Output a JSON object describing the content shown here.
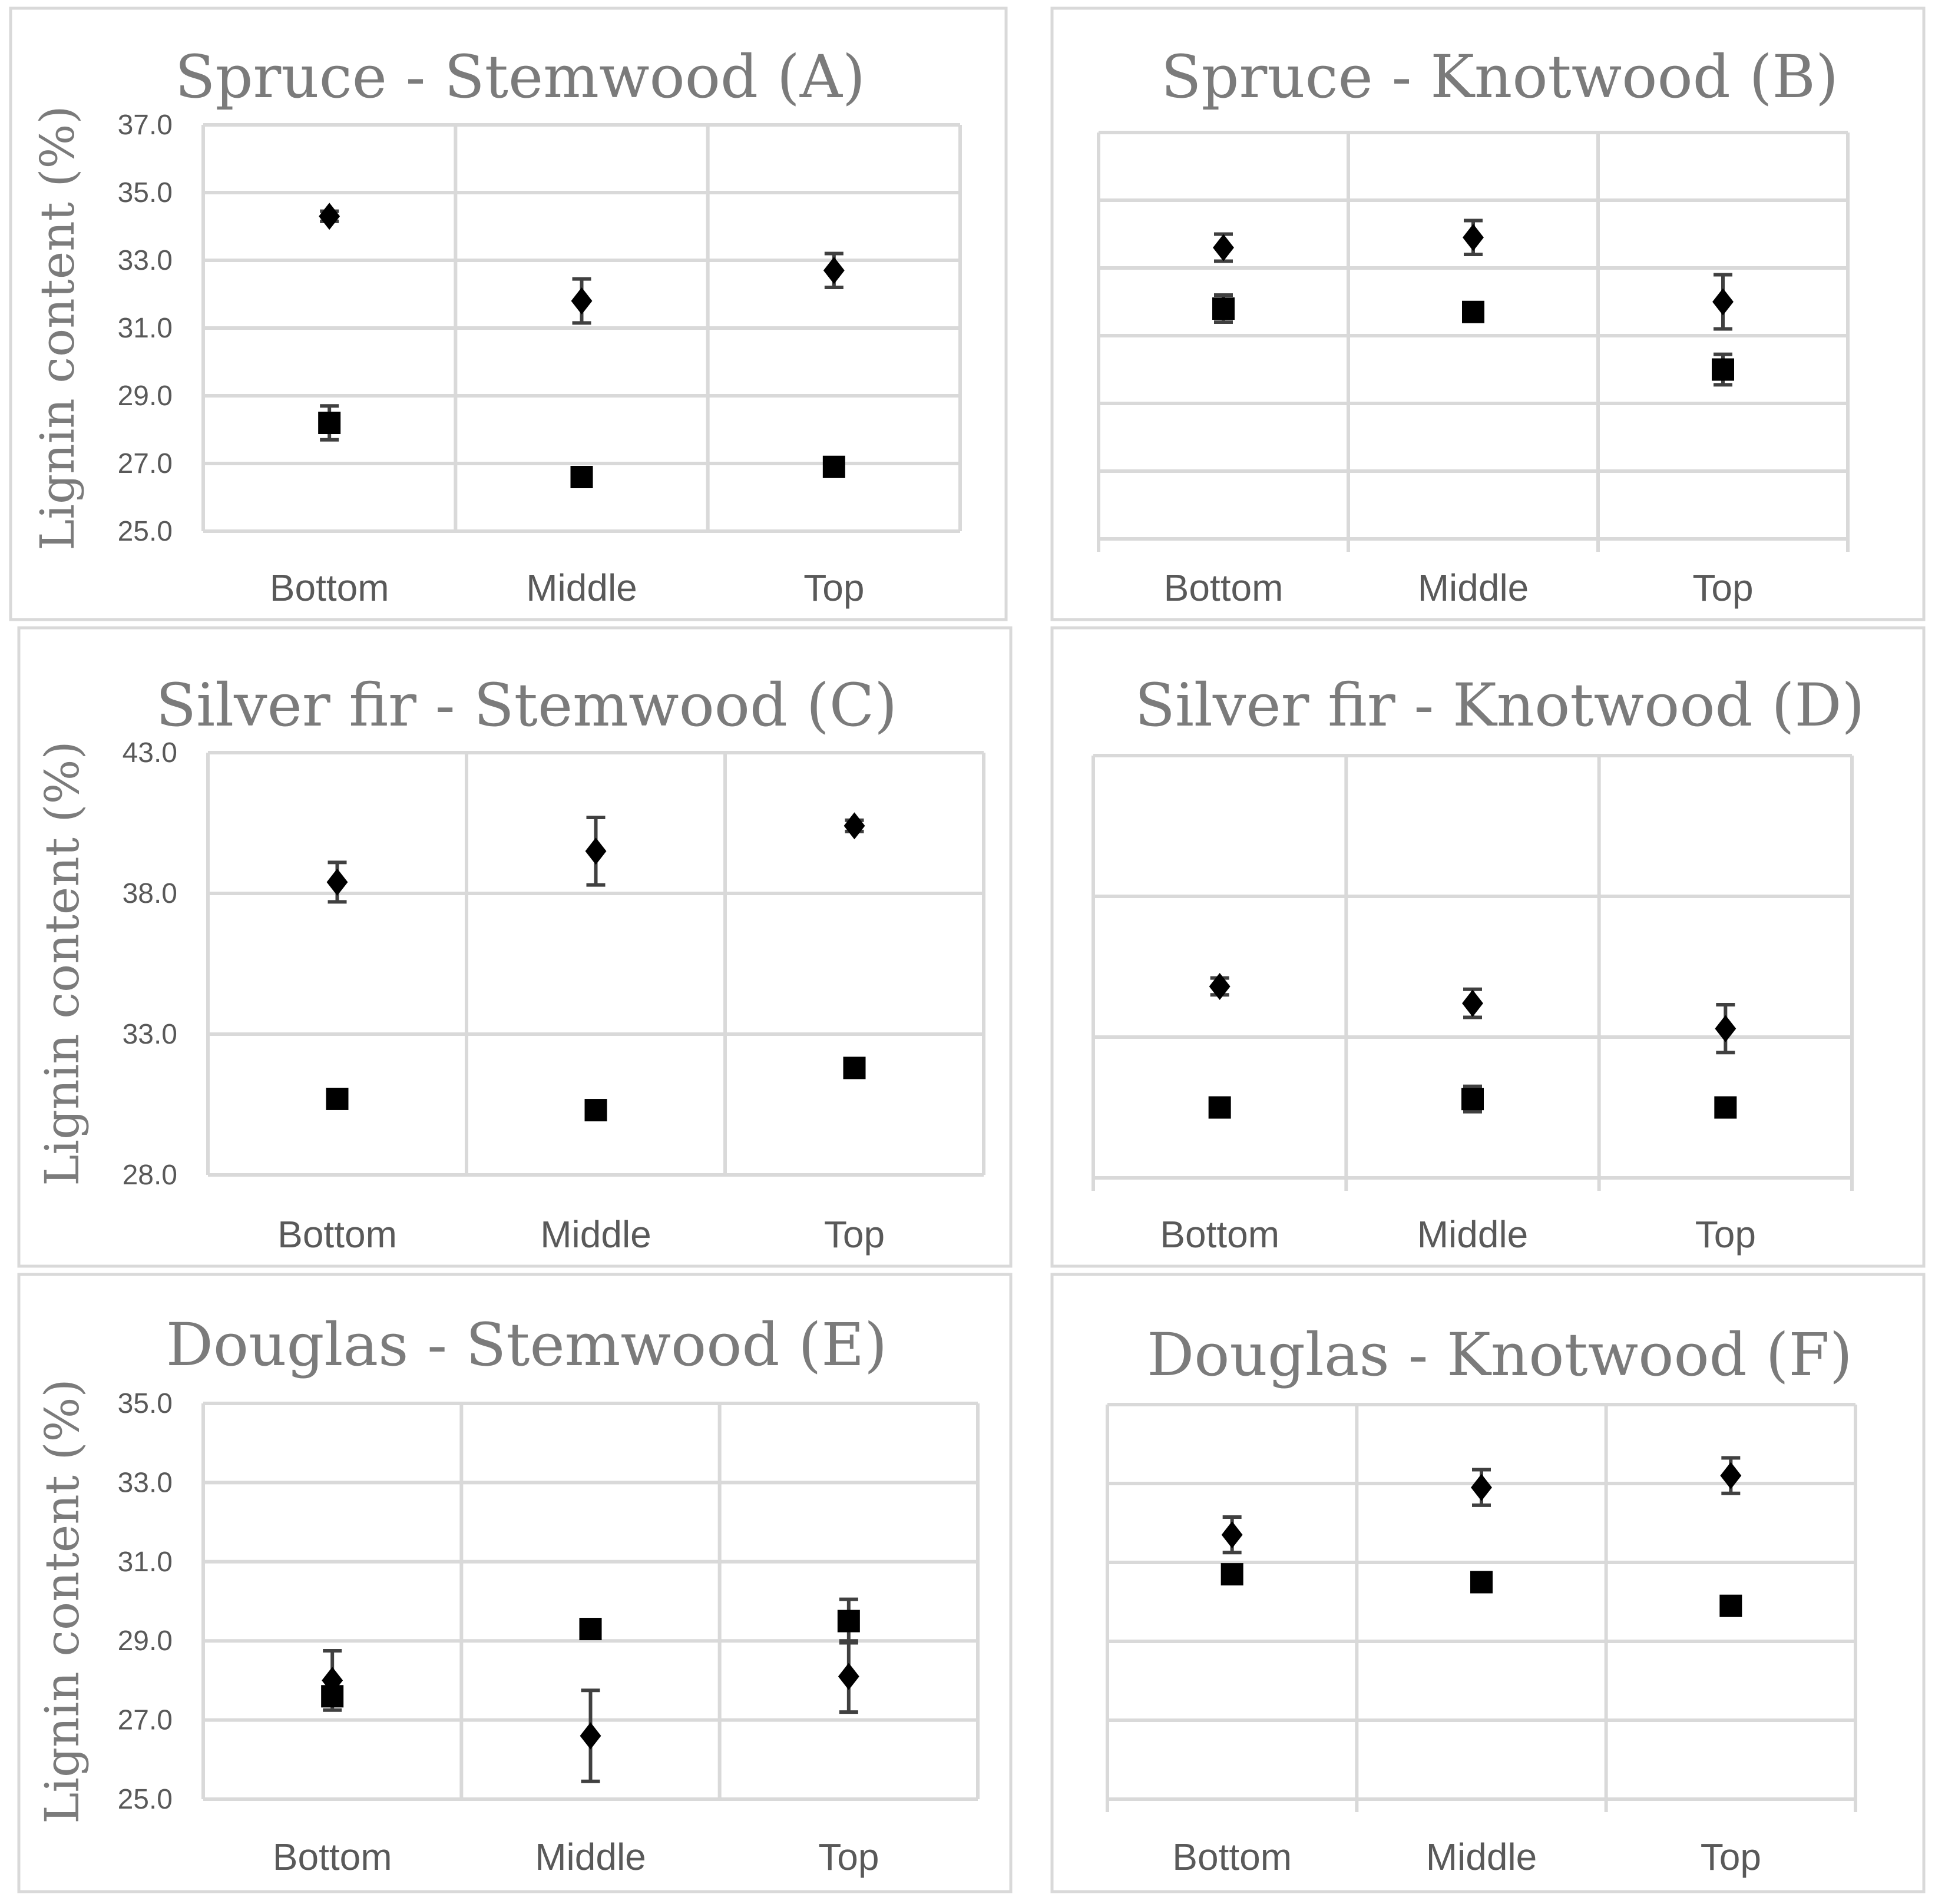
{
  "chart_data": [
    {
      "id": "A",
      "type": "scatter",
      "title": "Spruce - Stemwood (A)",
      "ylabel": "Lignin content (%)",
      "show_yticks": true,
      "ylim": [
        25,
        37
      ],
      "yticks": [
        25,
        27,
        29,
        31,
        33,
        35,
        37
      ],
      "ytick_labels": [
        "25.0",
        "27.0",
        "29.0",
        "31.0",
        "33.0",
        "35.0",
        "37.0"
      ],
      "categories": [
        "Bottom",
        "Middle",
        "Top"
      ],
      "series": [
        {
          "name": "diamond",
          "marker": "diamond",
          "values": [
            34.3,
            31.8,
            32.7
          ],
          "errors": [
            0.15,
            0.65,
            0.5
          ]
        },
        {
          "name": "square",
          "marker": "square",
          "values": [
            28.2,
            26.6,
            26.9
          ],
          "errors": [
            0.5,
            0.1,
            0.1
          ]
        }
      ]
    },
    {
      "id": "B",
      "type": "scatter",
      "title": "Spruce - Knotwood (B)",
      "ylabel": "",
      "show_yticks": false,
      "ylim": [
        25,
        37
      ],
      "yticks": [
        25,
        27,
        29,
        31,
        33,
        35,
        37
      ],
      "ytick_labels": [],
      "categories": [
        "Bottom",
        "Middle",
        "Top"
      ],
      "series": [
        {
          "name": "diamond",
          "marker": "diamond",
          "values": [
            33.6,
            33.9,
            32.0
          ],
          "errors": [
            0.4,
            0.5,
            0.8
          ]
        },
        {
          "name": "square",
          "marker": "square",
          "values": [
            31.8,
            31.7,
            30.0
          ],
          "errors": [
            0.4,
            0.1,
            0.45
          ]
        }
      ]
    },
    {
      "id": "C",
      "type": "scatter",
      "title": "Silver fir - Stemwood (C)",
      "ylabel": "Lignin content (%)",
      "show_yticks": true,
      "ylim": [
        28,
        43
      ],
      "yticks": [
        28,
        33,
        38,
        43
      ],
      "ytick_labels": [
        "28.0",
        "33.0",
        "38.0",
        "43.0"
      ],
      "categories": [
        "Bottom",
        "Middle",
        "Top"
      ],
      "series": [
        {
          "name": "diamond",
          "marker": "diamond",
          "values": [
            38.4,
            39.5,
            40.4
          ],
          "errors": [
            0.7,
            1.2,
            0.2
          ]
        },
        {
          "name": "square",
          "marker": "square",
          "values": [
            30.7,
            30.3,
            31.8
          ],
          "errors": [
            0.1,
            0.1,
            0.1
          ]
        }
      ]
    },
    {
      "id": "D",
      "type": "scatter",
      "title": "Silver fir - Knotwood (D)",
      "ylabel": "",
      "show_yticks": false,
      "ylim": [
        28,
        43
      ],
      "yticks": [
        28,
        33,
        38,
        43
      ],
      "ytick_labels": [],
      "categories": [
        "Bottom",
        "Middle",
        "Top"
      ],
      "series": [
        {
          "name": "diamond",
          "marker": "diamond",
          "values": [
            34.8,
            34.2,
            33.3
          ],
          "errors": [
            0.3,
            0.5,
            0.85
          ]
        },
        {
          "name": "square",
          "marker": "square",
          "values": [
            30.5,
            30.8,
            30.5
          ],
          "errors": [
            0.1,
            0.45,
            0.1
          ]
        }
      ]
    },
    {
      "id": "E",
      "type": "scatter",
      "title": "Douglas - Stemwood (E)",
      "ylabel": "Lignin content (%)",
      "show_yticks": true,
      "ylim": [
        25,
        35
      ],
      "yticks": [
        25,
        27,
        29,
        31,
        33,
        35
      ],
      "ytick_labels": [
        "25.0",
        "27.0",
        "29.0",
        "31.0",
        "33.0",
        "35.0"
      ],
      "categories": [
        "Bottom",
        "Middle",
        "Top"
      ],
      "series": [
        {
          "name": "diamond",
          "marker": "diamond",
          "values": [
            28.0,
            26.6,
            28.1
          ],
          "errors": [
            0.75,
            1.15,
            0.9
          ]
        },
        {
          "name": "square",
          "marker": "square",
          "values": [
            27.6,
            29.3,
            29.5
          ],
          "errors": [
            0.1,
            0.1,
            0.55
          ]
        }
      ]
    },
    {
      "id": "F",
      "type": "scatter",
      "title": "Douglas - Knotwood (F)",
      "ylabel": "",
      "show_yticks": false,
      "ylim": [
        25,
        35
      ],
      "yticks": [
        25,
        27,
        29,
        31,
        33,
        35
      ],
      "ytick_labels": [],
      "categories": [
        "Bottom",
        "Middle",
        "Top"
      ],
      "series": [
        {
          "name": "diamond",
          "marker": "diamond",
          "values": [
            31.7,
            32.9,
            33.2
          ],
          "errors": [
            0.45,
            0.45,
            0.45
          ]
        },
        {
          "name": "square",
          "marker": "square",
          "values": [
            30.7,
            30.5,
            29.9
          ],
          "errors": [
            0.1,
            0.1,
            0.1
          ]
        }
      ]
    }
  ]
}
